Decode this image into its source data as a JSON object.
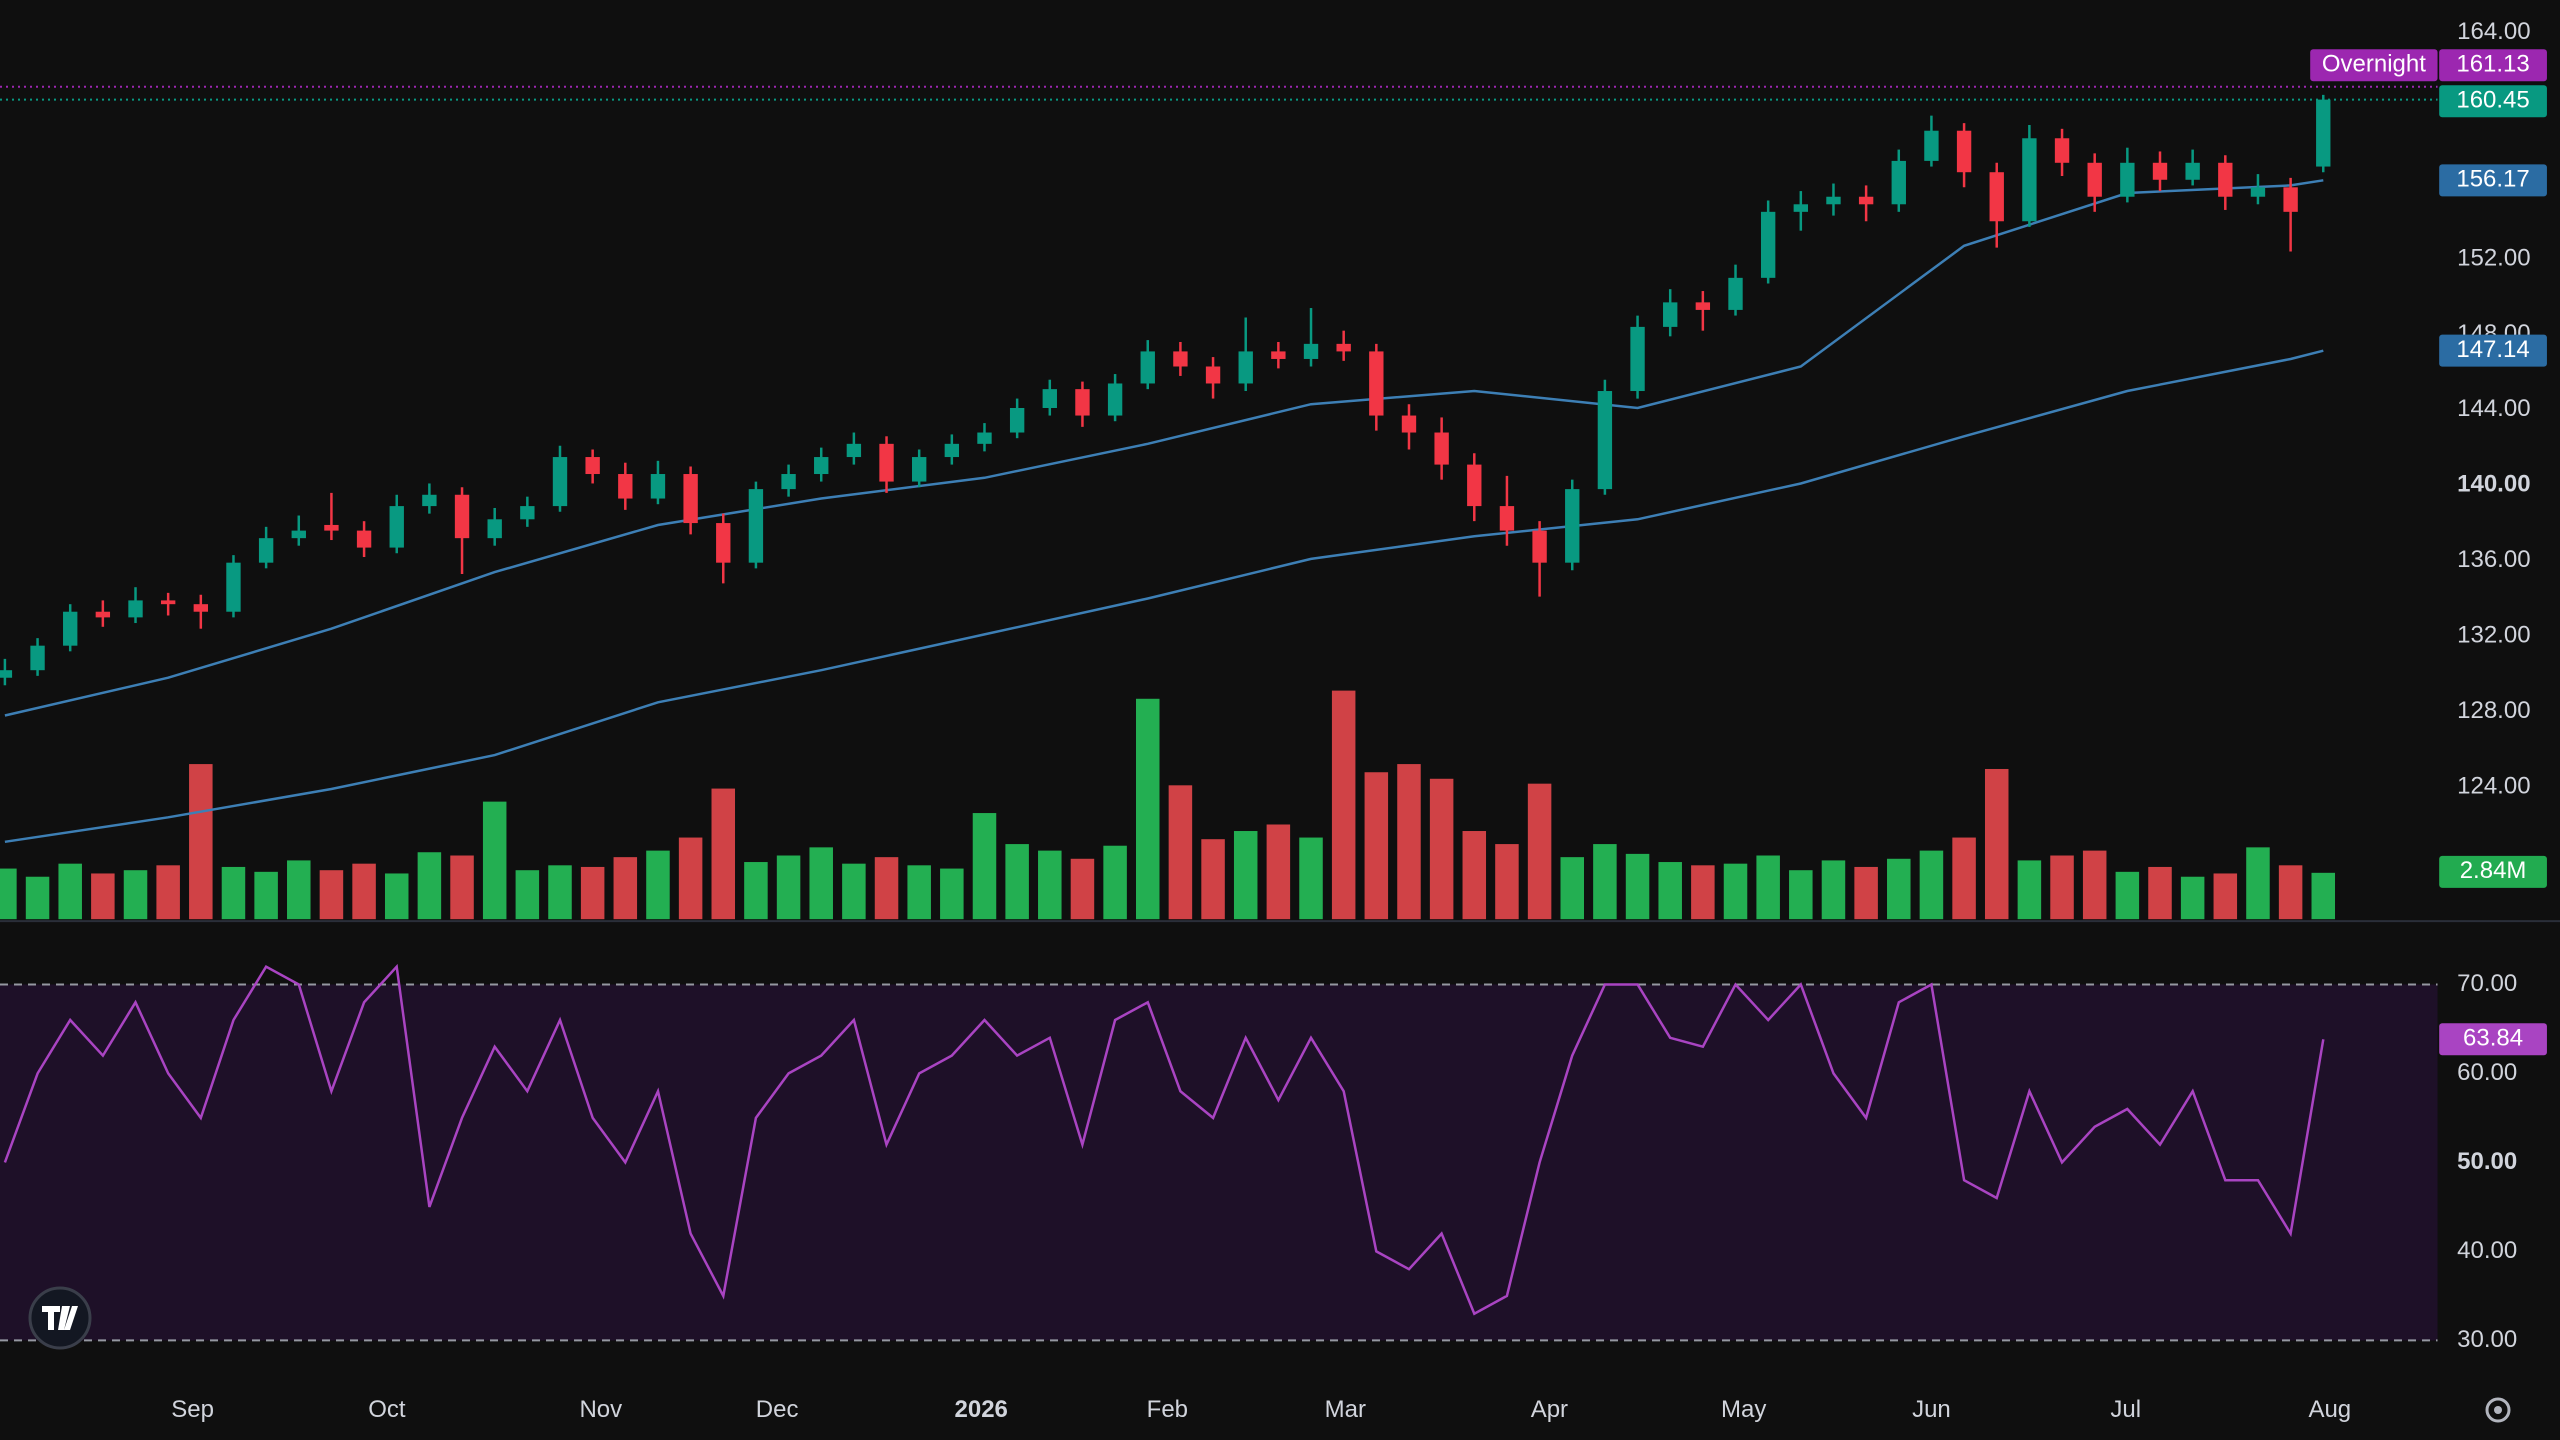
{
  "chart_data": {
    "type": "candlestick",
    "up_color": "#089981",
    "down_color": "#f23645",
    "grid": false,
    "xlim": [
      -0.15,
      74.5
    ],
    "xticks": [
      {
        "value": 5.75,
        "label": "Sep"
      },
      {
        "value": 11.7,
        "label": "Oct"
      },
      {
        "value": 18.25,
        "label": "Nov"
      },
      {
        "value": 23.65,
        "label": "Dec"
      },
      {
        "value": 29.9,
        "label": "2026"
      },
      {
        "value": 35.6,
        "label": "Feb"
      },
      {
        "value": 41.05,
        "label": "Mar"
      },
      {
        "value": 47.3,
        "label": "Apr"
      },
      {
        "value": 53.25,
        "label": "May"
      },
      {
        "value": 59,
        "label": "Jun"
      },
      {
        "value": 64.95,
        "label": "Jul"
      },
      {
        "value": 71.2,
        "label": "Aug"
      }
    ],
    "ylim": [
      117,
      165.73
    ],
    "yticks": [
      {
        "value": 124,
        "label": "124.00"
      },
      {
        "value": 128,
        "label": "128.00"
      },
      {
        "value": 132,
        "label": "132.00"
      },
      {
        "value": 136,
        "label": "136.00"
      },
      {
        "value": 140,
        "label": "140.00"
      },
      {
        "value": 144,
        "label": "144.00"
      },
      {
        "value": 148,
        "label": "148.00"
      },
      {
        "value": 152,
        "label": "152.00"
      },
      {
        "value": 164,
        "label": "164.00"
      }
    ],
    "candles": [
      [
        129.8,
        130.8,
        129.4,
        130.2
      ],
      [
        130.2,
        131.9,
        129.9,
        131.5
      ],
      [
        131.5,
        133.7,
        131.2,
        133.3
      ],
      [
        133.3,
        133.9,
        132.5,
        133.0
      ],
      [
        133.0,
        134.6,
        132.7,
        133.9
      ],
      [
        133.9,
        134.3,
        133.1,
        133.7
      ],
      [
        133.7,
        134.2,
        132.4,
        133.3
      ],
      [
        133.3,
        136.3,
        133.0,
        135.9
      ],
      [
        135.9,
        137.8,
        135.6,
        137.2
      ],
      [
        137.2,
        138.4,
        136.8,
        137.6
      ],
      [
        137.9,
        139.6,
        137.1,
        137.6
      ],
      [
        137.6,
        138.1,
        136.2,
        136.7
      ],
      [
        136.7,
        139.5,
        136.4,
        138.9
      ],
      [
        138.9,
        140.1,
        138.5,
        139.5
      ],
      [
        139.5,
        139.9,
        135.3,
        137.2
      ],
      [
        137.2,
        138.8,
        136.8,
        138.2
      ],
      [
        138.2,
        139.4,
        137.8,
        138.9
      ],
      [
        138.9,
        142.1,
        138.6,
        141.5
      ],
      [
        141.5,
        141.9,
        140.1,
        140.6
      ],
      [
        140.6,
        141.2,
        138.7,
        139.3
      ],
      [
        139.3,
        141.3,
        139.0,
        140.6
      ],
      [
        140.6,
        141.0,
        137.4,
        138.0
      ],
      [
        138.0,
        138.5,
        134.8,
        135.9
      ],
      [
        135.9,
        140.2,
        135.6,
        139.8
      ],
      [
        139.8,
        141.1,
        139.4,
        140.6
      ],
      [
        140.6,
        142.0,
        140.2,
        141.5
      ],
      [
        141.5,
        142.8,
        141.1,
        142.2
      ],
      [
        142.2,
        142.6,
        139.6,
        140.2
      ],
      [
        140.2,
        141.9,
        139.9,
        141.5
      ],
      [
        141.5,
        142.7,
        141.1,
        142.2
      ],
      [
        142.2,
        143.3,
        141.8,
        142.8
      ],
      [
        142.8,
        144.6,
        142.5,
        144.1
      ],
      [
        144.1,
        145.6,
        143.7,
        145.1
      ],
      [
        145.1,
        145.5,
        143.1,
        143.7
      ],
      [
        143.7,
        145.9,
        143.4,
        145.4
      ],
      [
        145.4,
        147.7,
        145.1,
        147.1
      ],
      [
        147.1,
        147.6,
        145.8,
        146.3
      ],
      [
        146.3,
        146.8,
        144.6,
        145.4
      ],
      [
        145.4,
        148.9,
        145.0,
        147.1
      ],
      [
        147.1,
        147.6,
        146.2,
        146.7
      ],
      [
        146.7,
        149.4,
        146.3,
        147.5
      ],
      [
        147.5,
        148.2,
        146.6,
        147.1
      ],
      [
        147.1,
        147.5,
        142.9,
        143.7
      ],
      [
        143.7,
        144.3,
        141.9,
        142.8
      ],
      [
        142.8,
        143.6,
        140.3,
        141.1
      ],
      [
        141.1,
        141.7,
        138.1,
        138.9
      ],
      [
        138.9,
        140.5,
        136.8,
        137.6
      ],
      [
        137.6,
        138.1,
        134.1,
        135.9
      ],
      [
        135.9,
        140.3,
        135.5,
        139.8
      ],
      [
        139.8,
        145.6,
        139.5,
        145.0
      ],
      [
        145.0,
        149.0,
        144.6,
        148.4
      ],
      [
        148.4,
        150.4,
        147.9,
        149.7
      ],
      [
        149.7,
        150.3,
        148.2,
        149.3
      ],
      [
        149.3,
        151.7,
        149.0,
        151.0
      ],
      [
        151.0,
        155.1,
        150.7,
        154.5
      ],
      [
        154.5,
        155.6,
        153.5,
        154.9
      ],
      [
        154.9,
        156.0,
        154.3,
        155.3
      ],
      [
        155.3,
        155.9,
        154.0,
        154.9
      ],
      [
        154.9,
        157.8,
        154.5,
        157.2
      ],
      [
        157.2,
        159.6,
        156.9,
        158.8
      ],
      [
        158.8,
        159.2,
        155.8,
        156.6
      ],
      [
        156.6,
        157.1,
        152.6,
        154.0
      ],
      [
        154.0,
        159.1,
        153.7,
        158.4
      ],
      [
        158.4,
        158.9,
        156.4,
        157.1
      ],
      [
        157.1,
        157.6,
        154.5,
        155.3
      ],
      [
        155.3,
        157.9,
        155.0,
        157.1
      ],
      [
        157.1,
        157.7,
        155.6,
        156.2
      ],
      [
        156.2,
        157.8,
        155.9,
        157.1
      ],
      [
        157.1,
        157.5,
        154.6,
        155.3
      ],
      [
        155.3,
        156.5,
        154.9,
        155.8
      ],
      [
        155.8,
        156.3,
        152.4,
        154.5
      ],
      [
        156.9,
        160.7,
        156.6,
        160.45
      ]
    ],
    "volume": {
      "up_color": "#26c15a",
      "down_color": "#e5484d",
      "ylim": [
        0,
        56.3
      ],
      "values": [
        3.1,
        2.6,
        3.4,
        2.8,
        3.0,
        3.3,
        9.5,
        3.2,
        2.9,
        3.6,
        3.0,
        3.4,
        2.8,
        4.1,
        3.9,
        7.2,
        3.0,
        3.3,
        3.2,
        3.8,
        4.2,
        5.0,
        8.0,
        3.5,
        3.9,
        4.4,
        3.4,
        3.8,
        3.3,
        3.1,
        6.5,
        4.6,
        4.2,
        3.7,
        4.5,
        13.5,
        8.2,
        4.9,
        5.4,
        5.8,
        5.0,
        14.0,
        9.0,
        9.5,
        8.6,
        5.4,
        4.6,
        8.3,
        3.8,
        4.6,
        4.0,
        3.5,
        3.3,
        3.4,
        3.9,
        3.0,
        3.6,
        3.2,
        3.7,
        4.2,
        5.0,
        9.2,
        3.6,
        3.9,
        4.2,
        2.9,
        3.2,
        2.6,
        2.8,
        4.4,
        3.3,
        2.84
      ],
      "last_label": "2.84M",
      "last_color": "#22ab50"
    },
    "moving_averages": [
      {
        "color": "#3d7fb5",
        "x": [
          0,
          5,
          10,
          15,
          20,
          25,
          30,
          35,
          40,
          45,
          50,
          55,
          60,
          65,
          70,
          71
        ],
        "values": [
          127.8,
          129.8,
          132.4,
          135.4,
          137.9,
          139.3,
          140.4,
          142.2,
          144.3,
          145.0,
          144.1,
          146.3,
          152.7,
          155.5,
          155.9,
          156.17
        ]
      },
      {
        "color": "#3d7fb5",
        "x": [
          0,
          5,
          10,
          15,
          20,
          25,
          30,
          35,
          40,
          45,
          50,
          55,
          60,
          65,
          70,
          71
        ],
        "values": [
          121.1,
          122.4,
          123.9,
          125.7,
          128.5,
          130.2,
          132.1,
          134.0,
          136.1,
          137.3,
          138.2,
          140.1,
          142.6,
          145.0,
          146.7,
          147.14
        ]
      }
    ],
    "overnight": {
      "text": "Overnight",
      "value": 161.13,
      "color": "#9c27b0"
    },
    "last_color": "#089981",
    "rsi": {
      "color": "#a944c2",
      "band_color": "#1e1028",
      "ylim": [
        25.6,
        76.6
      ],
      "band": [
        30,
        70
      ],
      "yticks": [
        {
          "value": 30,
          "label": "30.00"
        },
        {
          "value": 40,
          "label": "40.00"
        },
        {
          "value": 50,
          "label": "50.00"
        },
        {
          "value": 60,
          "label": "60.00"
        },
        {
          "value": 70,
          "label": "70.00"
        }
      ],
      "values": [
        50,
        60,
        66,
        62,
        68,
        60,
        55,
        66,
        72,
        70,
        58,
        68,
        72,
        45,
        55,
        63,
        58,
        66,
        55,
        50,
        58,
        42,
        35,
        55,
        60,
        62,
        66,
        52,
        60,
        62,
        66,
        62,
        64,
        52,
        66,
        68,
        58,
        55,
        64,
        57,
        64,
        58,
        40,
        38,
        42,
        33,
        35,
        50,
        62,
        70,
        70,
        64,
        63,
        70,
        66,
        70,
        60,
        55,
        68,
        70,
        48,
        46,
        58,
        50,
        54,
        56,
        52,
        58,
        48,
        48,
        42,
        63.84
      ]
    }
  }
}
